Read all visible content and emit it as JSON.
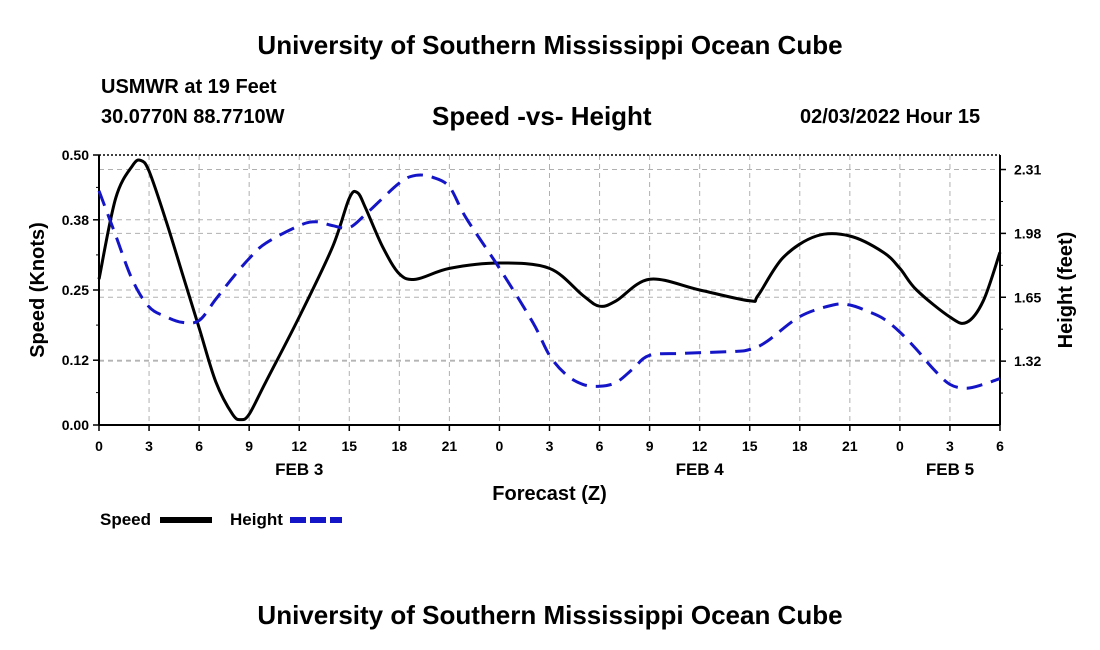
{
  "header": {
    "title": "University of Southern Mississippi Ocean Cube",
    "station": "USMWR at 19 Feet",
    "coords": "30.0770N  88.7710W",
    "datetime": "02/03/2022 Hour 15"
  },
  "footer": {
    "title": "University of Southern Mississippi Ocean Cube"
  },
  "colors": {
    "speed": "#000000",
    "height": "#1515c8",
    "grid": "#b0b0b0"
  },
  "chart_data": {
    "type": "line",
    "title": "Speed -vs- Height",
    "xlabel": "Forecast (Z)",
    "ylabel": "Speed (Knots)",
    "y2label": "Height (feet)",
    "x_range": [
      0,
      54
    ],
    "ylim": [
      0,
      0.5
    ],
    "y2lim": [
      0.99,
      2.385
    ],
    "y_ticks": [
      "0.00",
      "0.12",
      "0.25",
      "0.38",
      "0.50"
    ],
    "y2_ticks": [
      "1.32",
      "1.65",
      "1.98",
      "2.31"
    ],
    "x_tick_labels": [
      "0",
      "3",
      "6",
      "9",
      "12",
      "15",
      "18",
      "21",
      "0",
      "3",
      "6",
      "9",
      "12",
      "15",
      "18",
      "21",
      "0",
      "3",
      "6"
    ],
    "date_labels": [
      {
        "label": "FEB 3",
        "x": 12
      },
      {
        "label": "FEB 4",
        "x": 36
      },
      {
        "label": "FEB 5",
        "x": 51
      }
    ],
    "legend": [
      {
        "name": "Speed",
        "style": "solid"
      },
      {
        "name": "Height",
        "style": "dashed"
      }
    ],
    "series": [
      {
        "name": "Speed",
        "axis": "left",
        "style": "solid",
        "x": [
          0,
          1,
          2,
          2.5,
          3,
          4,
          5,
          6,
          7,
          8,
          8.5,
          9,
          10,
          12,
          14,
          15,
          15.5,
          16,
          17,
          18,
          19,
          21,
          24,
          27,
          29,
          30,
          31,
          33,
          36,
          39,
          39.5,
          41,
          43,
          45,
          47,
          48,
          49,
          51,
          52,
          53,
          54
        ],
        "values": [
          0.27,
          0.42,
          0.48,
          0.49,
          0.47,
          0.38,
          0.28,
          0.18,
          0.08,
          0.02,
          0.01,
          0.02,
          0.08,
          0.2,
          0.33,
          0.42,
          0.43,
          0.4,
          0.33,
          0.28,
          0.27,
          0.29,
          0.3,
          0.29,
          0.24,
          0.22,
          0.23,
          0.27,
          0.25,
          0.23,
          0.24,
          0.31,
          0.35,
          0.35,
          0.32,
          0.29,
          0.25,
          0.2,
          0.19,
          0.23,
          0.32
        ]
      },
      {
        "name": "Height",
        "axis": "right",
        "style": "dashed",
        "x": [
          0,
          1,
          2,
          3,
          4,
          5,
          6,
          7,
          8,
          9,
          10,
          12,
          13,
          14,
          15,
          16,
          18,
          19,
          20,
          21,
          22,
          24,
          26,
          27,
          28,
          29,
          30,
          31,
          32,
          33,
          35,
          38,
          39,
          40,
          42,
          44,
          45,
          46,
          47,
          48,
          49,
          50,
          51,
          52,
          53,
          54
        ],
        "values": [
          2.2,
          1.97,
          1.74,
          1.6,
          1.55,
          1.52,
          1.53,
          1.64,
          1.75,
          1.85,
          1.93,
          2.02,
          2.04,
          2.02,
          2.01,
          2.08,
          2.24,
          2.28,
          2.27,
          2.22,
          2.06,
          1.8,
          1.52,
          1.35,
          1.25,
          1.2,
          1.19,
          1.21,
          1.28,
          1.35,
          1.36,
          1.37,
          1.38,
          1.42,
          1.55,
          1.61,
          1.61,
          1.58,
          1.54,
          1.47,
          1.38,
          1.28,
          1.2,
          1.18,
          1.2,
          1.23
        ]
      }
    ]
  }
}
